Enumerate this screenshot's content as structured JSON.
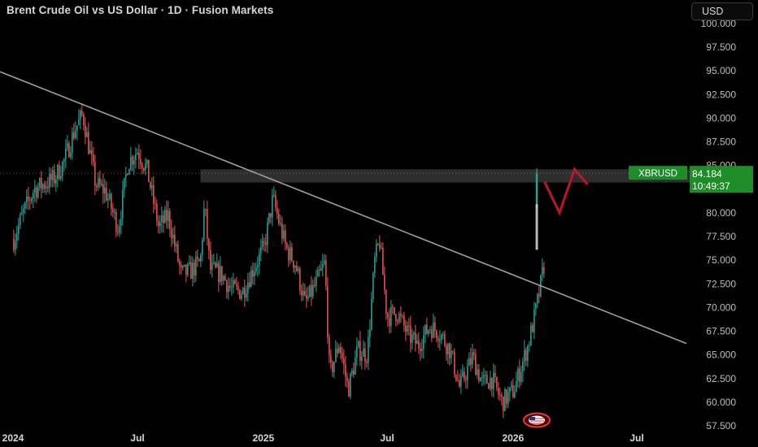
{
  "header": {
    "title": "Brent Crude Oil vs US Dollar · 1D · Fusion Markets",
    "currency": "USD"
  },
  "colors": {
    "background": "#000000",
    "up": "#26a69a",
    "down": "#ef5350",
    "trendline": "#9e9e9e",
    "zone": "#363636",
    "projection": "#b2182b",
    "last_price_bg": "#1f8c2a"
  },
  "chart_data": {
    "type": "candlestick",
    "x": [
      "2024-01-02",
      "2024-01-16",
      "2024-02-01",
      "2024-02-15",
      "2024-03-01",
      "2024-03-15",
      "2024-04-01",
      "2024-04-12",
      "2024-05-01",
      "2024-05-15",
      "2024-06-03",
      "2024-06-17",
      "2024-07-01",
      "2024-07-15",
      "2024-08-01",
      "2024-08-15",
      "2024-09-03",
      "2024-09-16",
      "2024-10-01",
      "2024-10-07",
      "2024-10-15",
      "2024-11-01",
      "2024-11-15",
      "2024-12-02",
      "2024-12-16",
      "2025-01-02",
      "2025-01-15",
      "2025-02-03",
      "2025-02-17",
      "2025-03-03",
      "2025-03-17",
      "2025-04-01",
      "2025-04-08",
      "2025-04-22",
      "2025-05-05",
      "2025-05-19",
      "2025-06-02",
      "2025-06-13",
      "2025-06-20",
      "2025-07-01",
      "2025-07-15",
      "2025-08-01",
      "2025-08-15",
      "2025-09-01",
      "2025-09-15",
      "2025-10-01",
      "2025-10-15",
      "2025-11-03",
      "2025-11-17",
      "2025-12-01",
      "2025-12-16",
      "2026-01-02",
      "2026-01-12",
      "2026-01-23",
      "2026-02-02",
      "2026-02-09",
      "2026-02-16"
    ],
    "close": [
      77.2,
      80.0,
      82.5,
      83.0,
      83.6,
      85.3,
      88.9,
      90.4,
      83.0,
      82.3,
      78.4,
      85.3,
      86.6,
      84.5,
      78.5,
      79.7,
      73.5,
      73.8,
      74.8,
      80.9,
      74.0,
      73.5,
      71.9,
      71.7,
      73.9,
      76.3,
      81.5,
      76.3,
      74.6,
      70.4,
      72.2,
      74.7,
      62.8,
      66.3,
      61.3,
      65.5,
      65.0,
      75.0,
      77.0,
      69.0,
      69.5,
      67.1,
      66.0,
      68.0,
      67.4,
      65.5,
      61.5,
      64.8,
      62.0,
      62.5,
      60.0,
      61.2,
      63.5,
      66.0,
      69.2,
      71.8,
      74.8
    ],
    "last": {
      "open": 80.5,
      "high": 84.7,
      "low": 76.1,
      "close": 84.184
    },
    "ylim": [
      57.5,
      100.0
    ],
    "yticks": [
      "57.500",
      "60.000",
      "62.500",
      "65.000",
      "67.500",
      "70.000",
      "72.500",
      "75.000",
      "77.500",
      "80.000",
      "82.500",
      "85.000",
      "87.500",
      "90.000",
      "92.500",
      "95.000",
      "97.500",
      "100.000"
    ],
    "xticks": [
      {
        "label": "2024",
        "date": "2024-01-01"
      },
      {
        "label": "Jul",
        "date": "2024-07-01"
      },
      {
        "label": "2025",
        "date": "2025-01-01"
      },
      {
        "label": "Jul",
        "date": "2025-07-01"
      },
      {
        "label": "2026",
        "date": "2026-01-01"
      },
      {
        "label": "Jul",
        "date": "2026-07-01"
      }
    ],
    "trendline": [
      {
        "date": "2024-01-01",
        "price": 94.9
      },
      {
        "date": "2026-09-01",
        "price": 66.2
      }
    ],
    "resistance_zone": {
      "from": "2024-10-01",
      "to": "2026-09-01",
      "top": 84.6,
      "bottom": 83.2
    },
    "projection": [
      {
        "date": "2026-02-16",
        "price": 83.3
      },
      {
        "date": "2026-03-10",
        "price": 80.0
      },
      {
        "date": "2026-04-01",
        "price": 84.6
      },
      {
        "date": "2026-04-20",
        "price": 83.0
      }
    ],
    "symbol": "XBRUSD",
    "price": "84.184",
    "countdown": "10:49:37",
    "grid": false
  }
}
